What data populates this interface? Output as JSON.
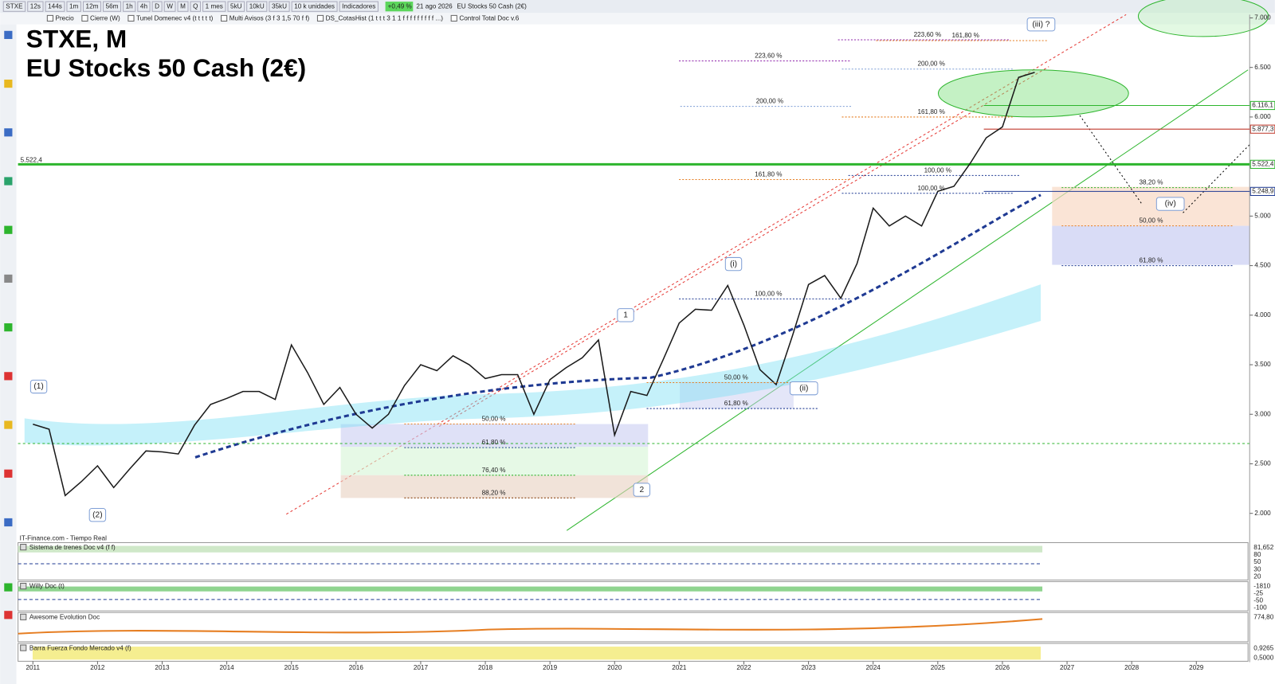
{
  "toolbar": {
    "symbol": "STXE",
    "intervals": [
      "12s",
      "144s",
      "1m",
      "12m",
      "56m",
      "1h",
      "4h",
      "D",
      "W",
      "M",
      "Q"
    ],
    "period": "1 mes",
    "units": [
      "5kU",
      "10kU",
      "35kU"
    ],
    "unit_select": "10 k unidades",
    "indicators": "Indicadores",
    "change": "+0,49 %",
    "date": "21 ago 2026",
    "instrument": "EU Stocks 50 Cash (2€)"
  },
  "legend_bar": [
    "Precio",
    "Cierre (W)",
    "Tunel Domenec v4 (t t t t t)",
    "Multi Avisos (3 f 3 1,5 70 f f)",
    "DS_CotasHist (1 t t t 3 1 1 f f f f f f f f f ...)",
    "Control Total Doc v.6"
  ],
  "source": "IT-Finance.com - Tiempo Real",
  "chart_data": {
    "type": "line",
    "title": "STXE, M",
    "subtitle": "EU Stocks 50 Cash (2€)",
    "x": [
      2011.0,
      2011.25,
      2011.5,
      2011.75,
      2012.0,
      2012.25,
      2012.5,
      2012.75,
      2013.0,
      2013.25,
      2013.5,
      2013.75,
      2014.0,
      2014.25,
      2014.5,
      2014.75,
      2015.0,
      2015.25,
      2015.5,
      2015.75,
      2016.0,
      2016.25,
      2016.5,
      2016.75,
      2017.0,
      2017.25,
      2017.5,
      2017.75,
      2018.0,
      2018.25,
      2018.5,
      2018.75,
      2019.0,
      2019.25,
      2019.5,
      2019.75,
      2020.0,
      2020.25,
      2020.5,
      2020.75,
      2021.0,
      2021.25,
      2021.5,
      2021.75,
      2022.0,
      2022.25,
      2022.5,
      2022.75,
      2023.0,
      2023.25,
      2023.5,
      2023.75,
      2024.0,
      2024.25,
      2024.5,
      2024.75,
      2025.0,
      2025.25,
      2025.5,
      2025.75,
      2026.0,
      2026.25,
      2026.5
    ],
    "values": [
      2900,
      2850,
      2180,
      2320,
      2480,
      2260,
      2450,
      2630,
      2620,
      2600,
      2890,
      3100,
      3160,
      3230,
      3230,
      3150,
      3700,
      3420,
      3100,
      3270,
      3000,
      2860,
      3000,
      3290,
      3500,
      3440,
      3590,
      3500,
      3360,
      3400,
      3400,
      3000,
      3350,
      3470,
      3570,
      3750,
      2790,
      3230,
      3190,
      3550,
      3920,
      4060,
      4050,
      4300,
      3900,
      3450,
      3300,
      3790,
      4310,
      4400,
      4170,
      4520,
      5080,
      4900,
      5000,
      4900,
      5250,
      5300,
      5530,
      5790,
      5900,
      6400,
      6450
    ],
    "color": "#1a1a1a",
    "xlim": [
      2010.77,
      2029.8
    ],
    "xticks": [
      2011,
      2012,
      2013,
      2014,
      2015,
      2016,
      2017,
      2018,
      2019,
      2020,
      2021,
      2022,
      2023,
      2024,
      2025,
      2026,
      2027,
      2028,
      2029
    ],
    "ylim": [
      1770,
      7033
    ],
    "yticks": [
      {
        "value": 2000,
        "label": "2.000"
      },
      {
        "value": 2500,
        "label": "2.500"
      },
      {
        "value": 3000,
        "label": "3.000"
      },
      {
        "value": 3500,
        "label": "3.500"
      },
      {
        "value": 4000,
        "label": "4.000"
      },
      {
        "value": 4500,
        "label": "4.500"
      },
      {
        "value": 5000,
        "label": "5.000"
      },
      {
        "value": 5500,
        "label": "5.500"
      },
      {
        "value": 6000,
        "label": "6.000"
      },
      {
        "value": 6500,
        "label": "6.500"
      },
      {
        "value": 7000,
        "label": "7.000"
      }
    ],
    "levels": [
      {
        "value": 5522.4,
        "label": "5.522,4",
        "color": "#2db52d"
      },
      {
        "value": 6116.1,
        "label": "6.116,1",
        "color": "#2db52d"
      },
      {
        "value": 5877.3,
        "label": "5.877,3",
        "color": "#c0392b"
      },
      {
        "value": 5248.9,
        "label": "5.248,9",
        "color": "#1f3a93"
      }
    ],
    "annotations": [
      {
        "text": "(1)",
        "x": 2011.09,
        "y": 3279
      },
      {
        "text": "(2)",
        "x": 2012.0,
        "y": 1984
      },
      {
        "text": "1",
        "x": 2020.17,
        "y": 4000
      },
      {
        "text": "2",
        "x": 2020.42,
        "y": 2238
      },
      {
        "text": "(i)",
        "x": 2021.84,
        "y": 4516
      },
      {
        "text": "(ii)",
        "x": 2022.84,
        "y": 3262
      },
      {
        "text": "(iii) ?",
        "x": 2026.51,
        "y": 6934
      },
      {
        "text": "(iv)",
        "x": 2028.51,
        "y": 5123
      }
    ],
    "fib_labels": [
      {
        "text": "223,60 %",
        "x": 2024.84,
        "y": 6828,
        "color": "#8e24aa"
      },
      {
        "text": "161,80 %",
        "x": 2025.43,
        "y": 6820,
        "color": "#e67e22"
      },
      {
        "text": "223,60 %",
        "x": 2022.38,
        "y": 6615,
        "color": "#8e24aa"
      },
      {
        "text": "200,00 %",
        "x": 2024.9,
        "y": 6533,
        "color": "#7f9fd6"
      },
      {
        "text": "200,00 %",
        "x": 2022.4,
        "y": 6156,
        "color": "#7f9fd6"
      },
      {
        "text": "161,80 %",
        "x": 2024.9,
        "y": 6049,
        "color": "#e67e22"
      },
      {
        "text": "161,80 %",
        "x": 2022.38,
        "y": 5418,
        "color": "#e67e22"
      },
      {
        "text": "100,00 %",
        "x": 2025.0,
        "y": 5459,
        "color": "#1f3a93"
      },
      {
        "text": "100,00 %",
        "x": 2024.9,
        "y": 5279,
        "color": "#1f3a93"
      },
      {
        "text": "100,00 %",
        "x": 2022.38,
        "y": 4213,
        "color": "#1f3a93"
      },
      {
        "text": "50,00 %",
        "x": 2021.88,
        "y": 3369,
        "color": "#e67e22"
      },
      {
        "text": "61,80 %",
        "x": 2021.88,
        "y": 3107,
        "color": "#1f3a93"
      },
      {
        "text": "50,00 %",
        "x": 2018.13,
        "y": 2951,
        "color": "#e67e22"
      },
      {
        "text": "61,80 %",
        "x": 2018.13,
        "y": 2713,
        "color": "#1f3a93"
      },
      {
        "text": "76,40 %",
        "x": 2018.13,
        "y": 2434,
        "color": "#2db52d"
      },
      {
        "text": "88,20 %",
        "x": 2018.13,
        "y": 2205,
        "color": "#8b4513"
      },
      {
        "text": "38,20 %",
        "x": 2028.3,
        "y": 5336,
        "color": "#2db52d"
      },
      {
        "text": "50,00 %",
        "x": 2028.3,
        "y": 4951,
        "color": "#e67e22"
      },
      {
        "text": "61,80 %",
        "x": 2028.3,
        "y": 4549,
        "color": "#1f3a93"
      }
    ]
  },
  "panels": [
    {
      "title": "Sistema de trenes Doc v4 (f f)",
      "axis": [
        "81,652",
        "80",
        "50",
        "30",
        "20"
      ]
    },
    {
      "title": "Willy Doc (t)",
      "axis": [
        "-1810",
        "-25",
        "-50",
        "-100"
      ]
    },
    {
      "title": "Awesome Evolution Doc",
      "axis": [
        "774,80"
      ]
    },
    {
      "title": "Barra Fuerza Fondo Mercado v4 (f)",
      "axis": [
        "0,9265",
        "0,5000"
      ]
    }
  ]
}
